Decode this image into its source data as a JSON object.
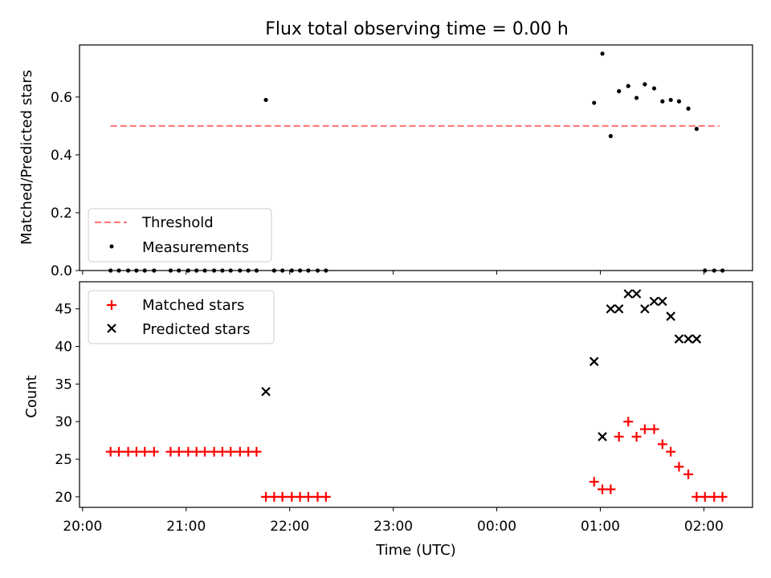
{
  "figure": {
    "title": "Flux total observing time = 0.00 h",
    "xlabel": "Time (UTC)",
    "x_ticks": [
      {
        "x": -3.94,
        "label": "20:00"
      },
      {
        "x": -2.94,
        "label": "21:00"
      },
      {
        "x": -1.94,
        "label": "22:00"
      },
      {
        "x": -0.94,
        "label": "23:00"
      },
      {
        "x": 0.06,
        "label": "00:00"
      },
      {
        "x": 1.06,
        "label": "01:00"
      },
      {
        "x": 2.06,
        "label": "02:00"
      }
    ],
    "colors": {
      "threshold": "#ff7070",
      "measurement": "#000000",
      "matched": "#ff0000",
      "predicted": "#000000"
    }
  },
  "chart_data": [
    {
      "type": "scatter",
      "title": "Flux total observing time = 0.00 h",
      "ylabel": "Matched/Predicted stars",
      "xlim": [
        -3.97,
        2.53
      ],
      "ylim": [
        0.0,
        0.78
      ],
      "y_ticks": [
        {
          "y": 0.0,
          "label": "0.0"
        },
        {
          "y": 0.2,
          "label": "0.2"
        },
        {
          "y": 0.4,
          "label": "0.4"
        },
        {
          "y": 0.6,
          "label": "0.6"
        }
      ],
      "legend": {
        "position": "lower left",
        "entries": [
          "Threshold",
          "Measurements"
        ]
      },
      "threshold": {
        "name": "Threshold",
        "y": 0.5,
        "x_range": [
          -3.67,
          2.21
        ]
      },
      "series": [
        {
          "name": "Measurements",
          "x": [
            -3.67,
            -3.59,
            -3.5,
            -3.42,
            -3.34,
            -3.25,
            -3.09,
            -3.01,
            -2.92,
            -2.84,
            -2.76,
            -2.67,
            -2.59,
            -2.51,
            -2.42,
            -2.34,
            -2.26,
            -2.17,
            -2.09,
            -2.01,
            -1.92,
            -1.84,
            -1.76,
            -1.67,
            -1.59,
            1.0,
            1.08,
            1.16,
            1.24,
            1.33,
            1.41,
            1.49,
            1.58,
            1.66,
            1.74,
            1.82,
            1.91,
            1.99,
            2.07,
            2.16,
            2.24
          ],
          "y": [
            0,
            0,
            0,
            0,
            0,
            0,
            0,
            0,
            0,
            0,
            0,
            0,
            0,
            0,
            0,
            0,
            0,
            0.59,
            0,
            0,
            0,
            0,
            0,
            0,
            0,
            0.58,
            0.75,
            0.465,
            0.62,
            0.638,
            0.597,
            0.644,
            0.63,
            0.585,
            0.59,
            0.585,
            0.56,
            0.49,
            0,
            0,
            0
          ]
        }
      ]
    },
    {
      "type": "scatter",
      "ylabel": "Count",
      "xlim": [
        -3.97,
        2.53
      ],
      "ylim": [
        18.6,
        48.6
      ],
      "y_ticks": [
        {
          "y": 20,
          "label": "20"
        },
        {
          "y": 25,
          "label": "25"
        },
        {
          "y": 30,
          "label": "30"
        },
        {
          "y": 35,
          "label": "35"
        },
        {
          "y": 40,
          "label": "40"
        },
        {
          "y": 45,
          "label": "45"
        }
      ],
      "legend": {
        "position": "upper left",
        "entries": [
          "Matched stars",
          "Predicted stars"
        ]
      },
      "series": [
        {
          "name": "Matched stars",
          "marker": "plus",
          "x": [
            -3.67,
            -3.59,
            -3.5,
            -3.42,
            -3.34,
            -3.25,
            -3.09,
            -3.01,
            -2.92,
            -2.84,
            -2.76,
            -2.67,
            -2.59,
            -2.51,
            -2.42,
            -2.34,
            -2.26,
            -2.17,
            -2.09,
            -2.01,
            -1.92,
            -1.84,
            -1.76,
            -1.67,
            -1.59,
            1.0,
            1.08,
            1.16,
            1.24,
            1.33,
            1.41,
            1.49,
            1.58,
            1.66,
            1.74,
            1.82,
            1.91,
            1.99,
            2.07,
            2.16,
            2.24
          ],
          "y": [
            26,
            26,
            26,
            26,
            26,
            26,
            26,
            26,
            26,
            26,
            26,
            26,
            26,
            26,
            26,
            26,
            26,
            20,
            20,
            20,
            20,
            20,
            20,
            20,
            20,
            22,
            21,
            21,
            28,
            30,
            28,
            29,
            29,
            27,
            26,
            24,
            23,
            20,
            20,
            20,
            20
          ]
        },
        {
          "name": "Predicted stars",
          "marker": "x",
          "x": [
            -2.17,
            1.0,
            1.08,
            1.16,
            1.24,
            1.33,
            1.41,
            1.49,
            1.58,
            1.66,
            1.74,
            1.82,
            1.91,
            1.99
          ],
          "y": [
            34,
            38,
            28,
            45,
            45,
            47,
            47,
            45,
            46,
            46,
            44,
            41,
            41,
            41
          ]
        }
      ]
    }
  ]
}
